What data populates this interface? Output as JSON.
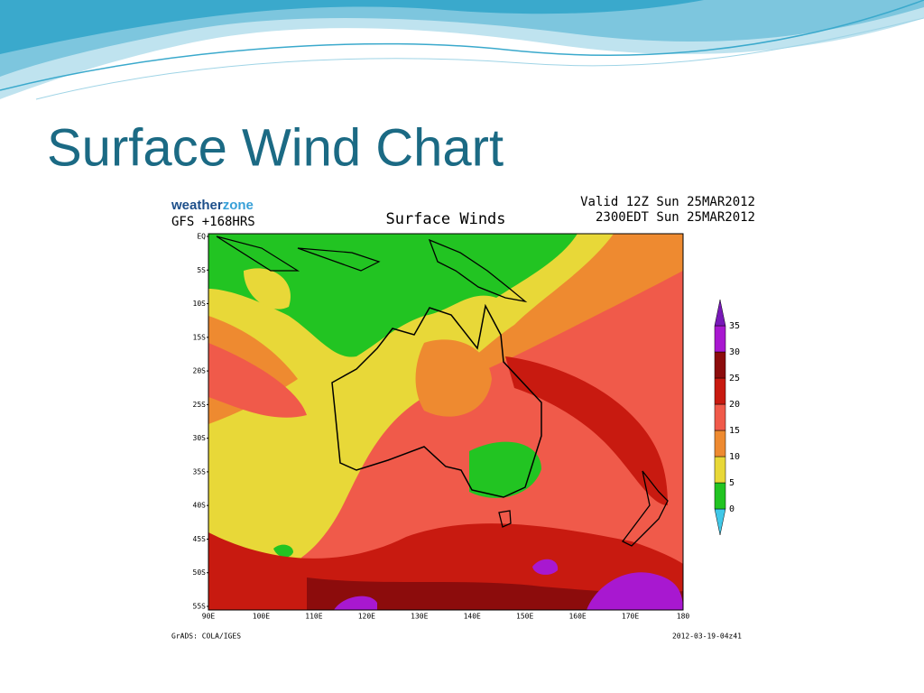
{
  "slide_title": "Surface Wind Chart",
  "map": {
    "logo": [
      "weather",
      "zone"
    ],
    "model": "GFS +168HRS",
    "title": "Surface Winds",
    "valid": [
      "Valid 12Z Sun 25MAR2012",
      "2300EDT Sun 25MAR2012"
    ],
    "latitudes": [
      "EQ",
      "5S",
      "10S",
      "15S",
      "20S",
      "25S",
      "30S",
      "35S",
      "40S",
      "45S",
      "50S",
      "55S"
    ],
    "longitudes": [
      "90E",
      "100E",
      "110E",
      "120E",
      "130E",
      "140E",
      "150E",
      "160E",
      "170E",
      "180"
    ],
    "colorbar": {
      "levels": [
        0,
        5,
        10,
        15,
        20,
        25,
        30,
        35
      ],
      "colors": [
        "#40c8e8",
        "#22c422",
        "#e8d838",
        "#ee8a30",
        "#f05a4a",
        "#c81a10",
        "#8c0c0c",
        "#a818d0",
        "#7818b8"
      ]
    },
    "footer_left": "GrADS: COLA/IGES",
    "footer_right": "2012-03-19-04z41"
  }
}
